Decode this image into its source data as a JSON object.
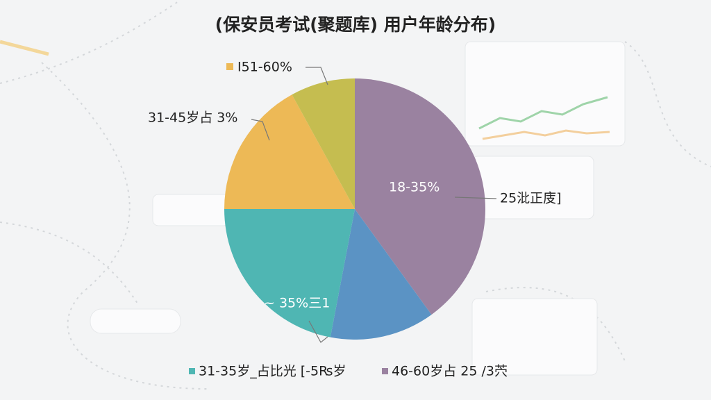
{
  "chart_data": {
    "type": "pie",
    "title": "(保安员考试(聚题库) 用户年龄分布)",
    "values": [
      40,
      13,
      22,
      17,
      8
    ],
    "colors": [
      "#9a82a0",
      "#5b93c4",
      "#4fb6b3",
      "#edb956",
      "#c5bd50"
    ],
    "slice_labels": [
      "18-35%",
      null,
      "~ 35%三1",
      "31-45岁占 3%",
      "I51-60%"
    ],
    "callout": "25沘正庋]",
    "legend": [
      {
        "name": "31-35岁_占比光 [-5₨岁",
        "color": "#4fb6b3"
      },
      {
        "name": "46-60岁占 25 /3茓",
        "color": "#9a82a0"
      }
    ]
  }
}
